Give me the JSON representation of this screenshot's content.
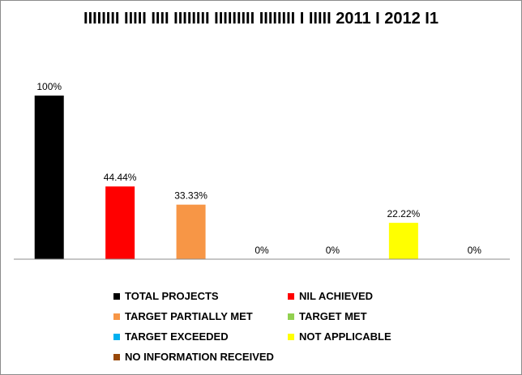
{
  "chart_data": {
    "type": "bar",
    "title": "IIIIIIII IIIII IIII IIIIIIII IIIIIIIII IIIIIIII I IIIII 2011 I 2012 I1",
    "xlabel": "",
    "ylabel": "",
    "ylim": [
      0,
      100
    ],
    "grid": false,
    "legend_position": "bottom",
    "categories": [
      "TOTAL PROJECTS",
      "NIL ACHIEVED",
      "TARGET PARTIALLY MET",
      "TARGET MET",
      "TARGET EXCEEDED",
      "NOT APPLICABLE",
      "NO INFORMATION RECEIVED"
    ],
    "values": [
      100,
      44.44,
      33.33,
      0,
      0,
      22.22,
      0
    ],
    "data_labels": [
      "100%",
      "44.44%",
      "33.33%",
      "0%",
      "0%",
      "22.22%",
      "0%"
    ],
    "colors": [
      "#000000",
      "#ff0000",
      "#f79646",
      "#92d050",
      "#00b0f0",
      "#ffff00",
      "#984807"
    ]
  }
}
